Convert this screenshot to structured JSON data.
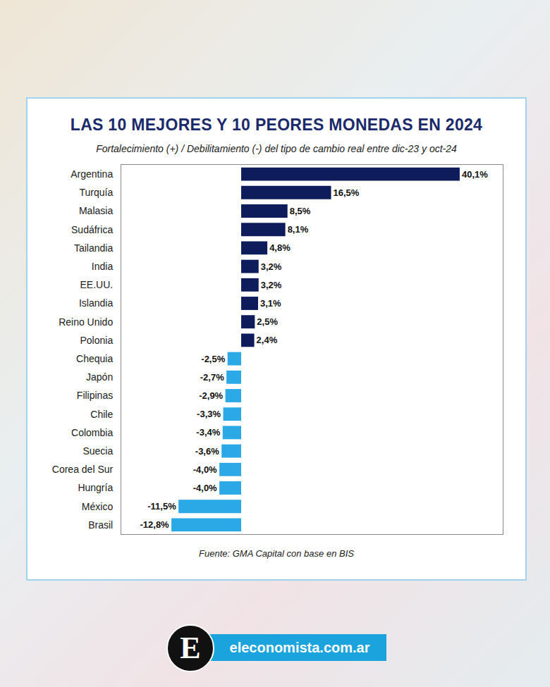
{
  "chart_data": {
    "type": "bar",
    "orientation": "horizontal",
    "title": "LAS 10 MEJORES Y 10 PEORES MONEDAS EN 2024",
    "subtitle": "Fortalecimiento (+) / Debilitamiento (-) del tipo de cambio real entre dic-23 y oct-24",
    "source": "Fuente: GMA Capital con base en BIS",
    "logo": "E",
    "site": "eleconomista.com.ar",
    "categories": [
      "Argentina",
      "Turquía",
      "Malasia",
      "Sudáfrica",
      "Tailandia",
      "India",
      "EE.UU.",
      "Islandia",
      "Reino Unido",
      "Polonia",
      "Chequia",
      "Japón",
      "Filipinas",
      "Chile",
      "Colombia",
      "Suecia",
      "Corea del Sur",
      "Hungría",
      "México",
      "Brasil"
    ],
    "values": [
      40.1,
      16.5,
      8.5,
      8.1,
      4.8,
      3.2,
      3.2,
      3.1,
      2.5,
      2.4,
      -2.5,
      -2.7,
      -2.9,
      -3.3,
      -3.4,
      -3.6,
      -4.0,
      -4.0,
      -11.5,
      -12.8
    ],
    "value_labels": [
      "40,1%",
      "16,5%",
      "8,5%",
      "8,1%",
      "4,8%",
      "3,2%",
      "3,2%",
      "3,1%",
      "2,5%",
      "2,4%",
      "-2,5%",
      "-2,7%",
      "-2,9%",
      "-3,3%",
      "-3,4%",
      "-3,6%",
      "-4,0%",
      "-4,0%",
      "-11,5%",
      "-12,8%"
    ],
    "colors": [
      "#0f1c5c",
      "#0f1c5c",
      "#0f1c5c",
      "#0f1c5c",
      "#0f1c5c",
      "#0f1c5c",
      "#0f1c5c",
      "#0f1c5c",
      "#0f1c5c",
      "#0f1c5c",
      "#2aa9e6",
      "#2aa9e6",
      "#2aa9e6",
      "#2aa9e6",
      "#2aa9e6",
      "#2aa9e6",
      "#2aa9e6",
      "#2aa9e6",
      "#2aa9e6",
      "#2aa9e6"
    ],
    "xlim": [
      -22,
      48
    ],
    "xticks": [],
    "tick_labels": "y",
    "data_labels": true,
    "grid": false
  }
}
